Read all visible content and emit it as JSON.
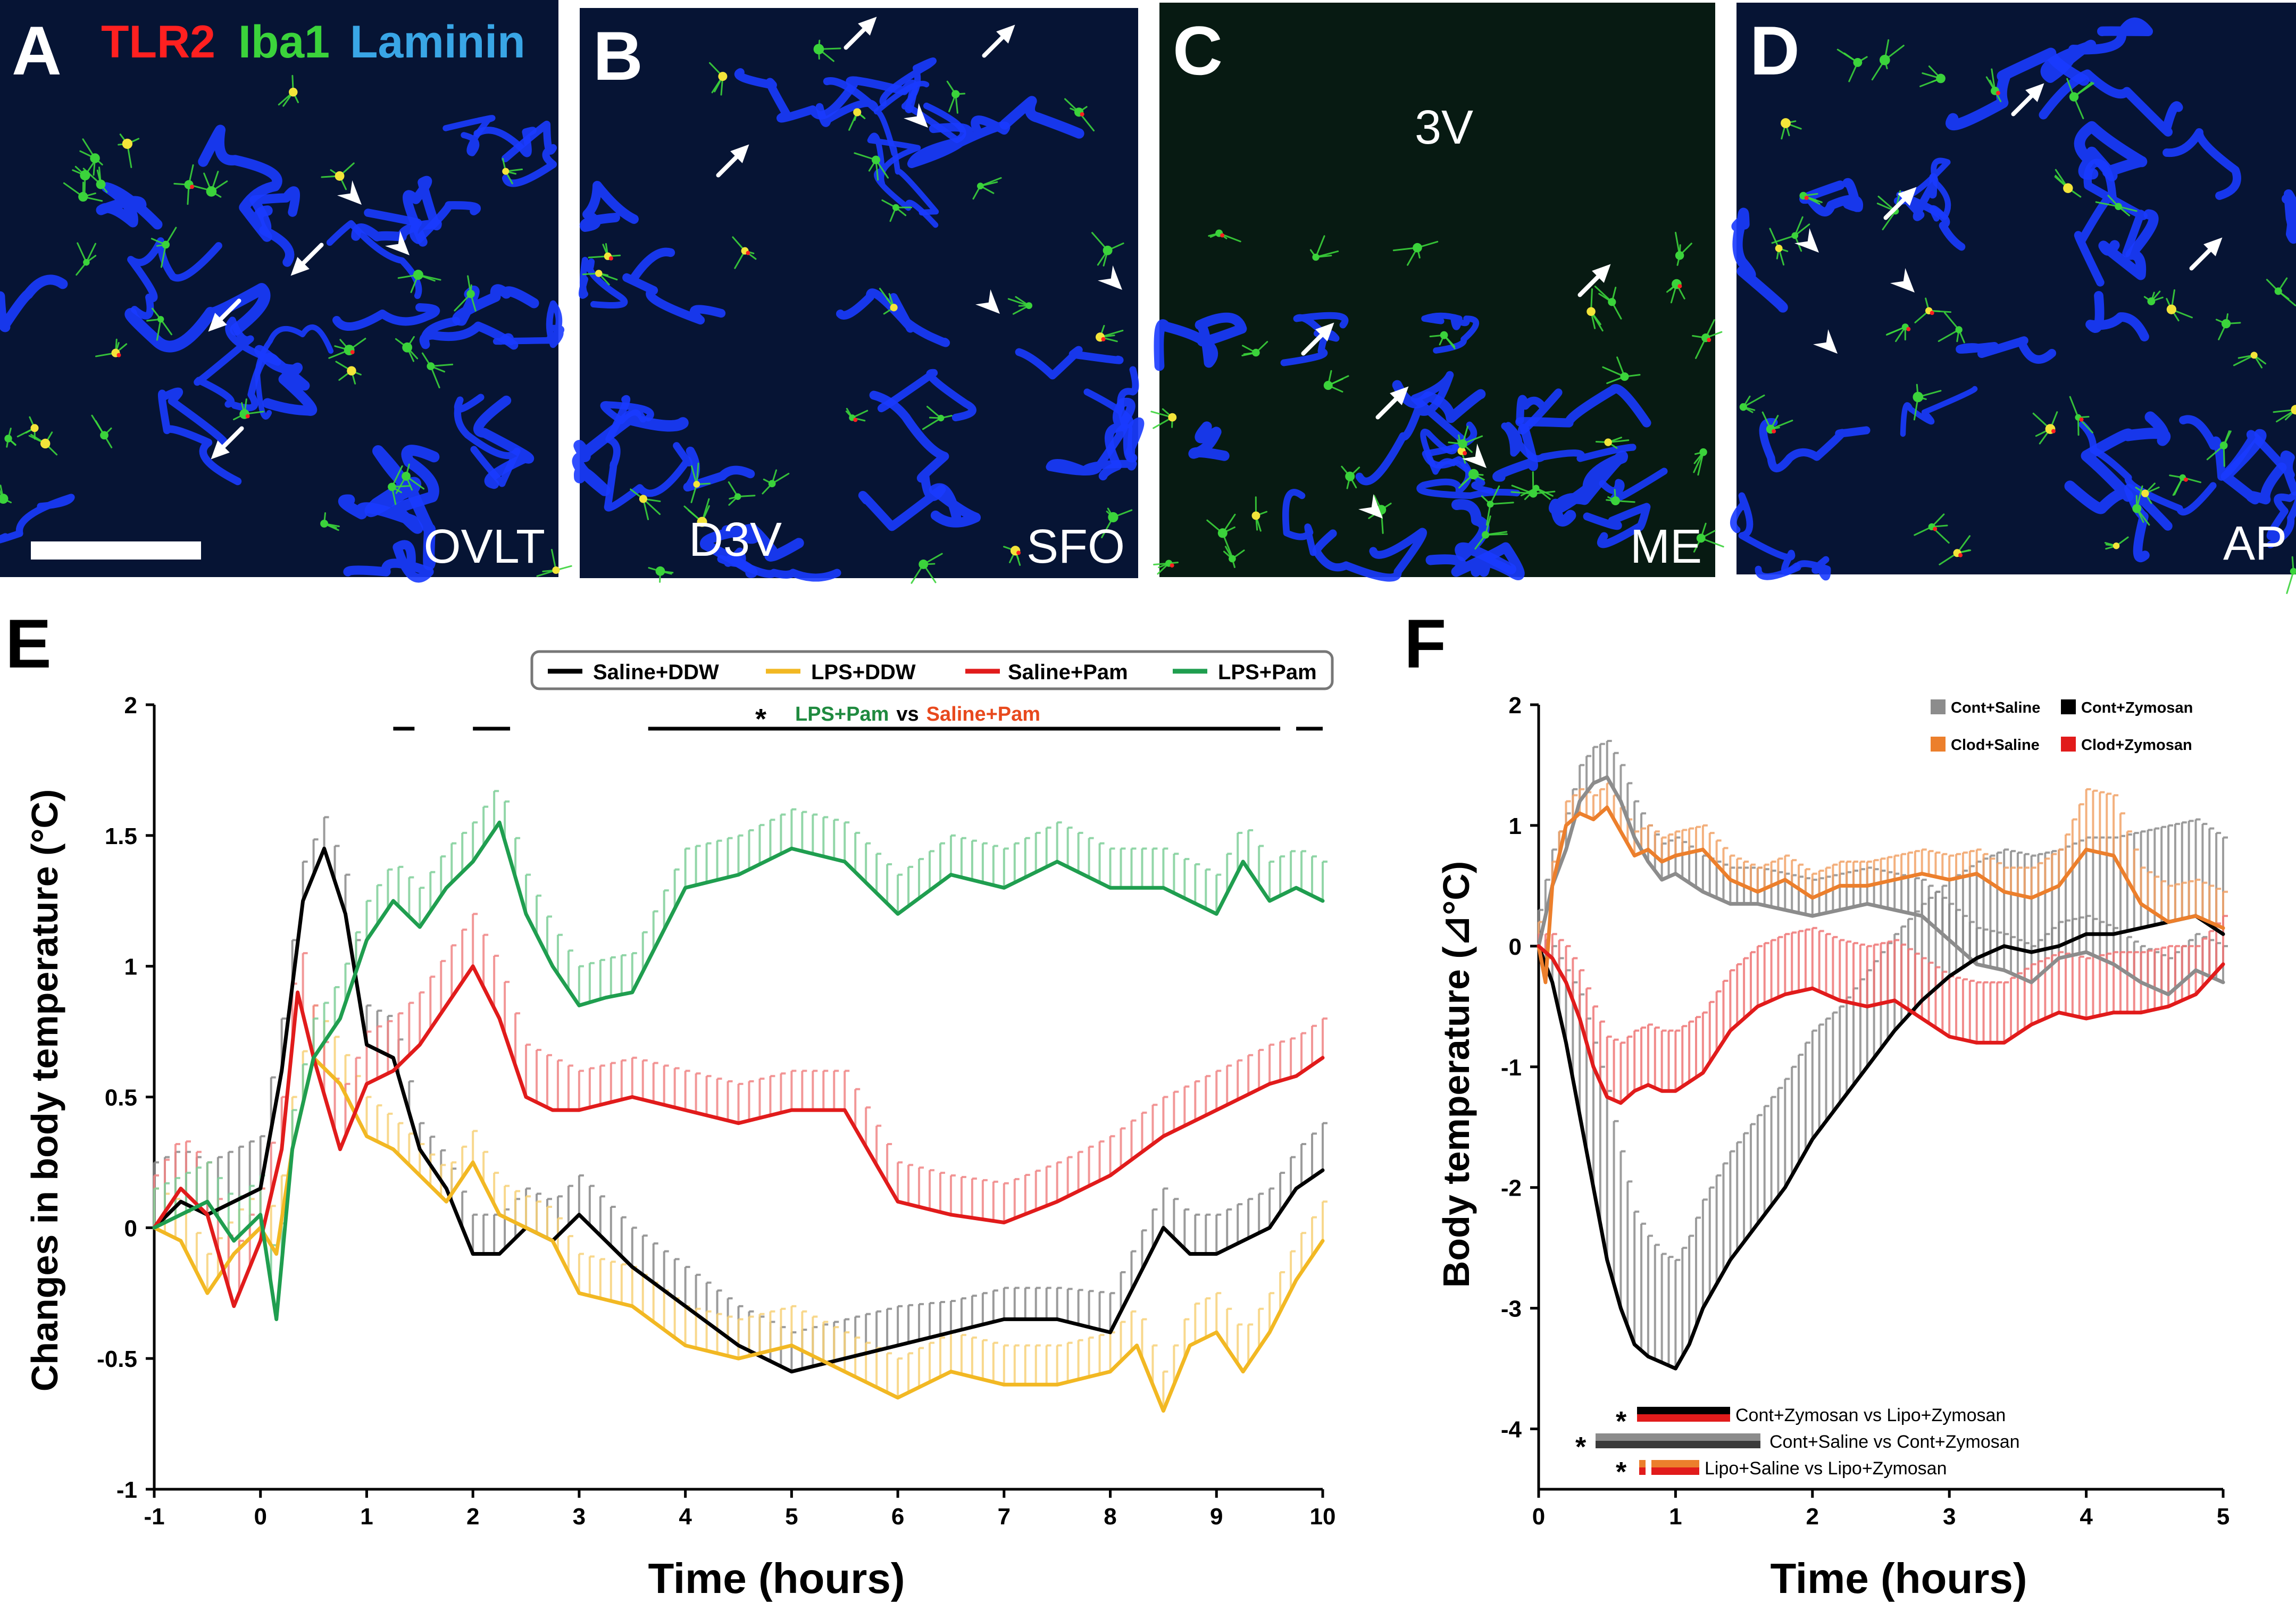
{
  "colors": {
    "saline_ddw": "#000000",
    "lps_ddw": "#f2b823",
    "saline_pam": "#e11b1b",
    "lps_pam": "#1f9e4f",
    "cont_saline": "#8c8c8c",
    "cont_zymosan": "#000000",
    "clod_saline": "#ec7f2c",
    "clod_zymosan": "#e11b1b",
    "laminin": "#1a3bff",
    "iba1": "#3bd33b",
    "tlr2": "#ff2020",
    "stain_title_laminin": "#39a6e6"
  },
  "micrographs": {
    "stain_title": {
      "tlr2": "TLR2",
      "iba1": "Iba1",
      "laminin": "Laminin"
    },
    "panels": [
      {
        "letter": "A",
        "region": "OVLT",
        "extra_label": ""
      },
      {
        "letter": "B",
        "region": "SFO",
        "extra_label": "D3V"
      },
      {
        "letter": "C",
        "region": "ME",
        "extra_label": "3V"
      },
      {
        "letter": "D",
        "region": "AP",
        "extra_label": ""
      }
    ]
  },
  "panel_e": {
    "letter": "E",
    "sig_star": "*",
    "sig_label_a": "LPS+Pam",
    "sig_vs": "vs",
    "sig_label_b": "Saline+Pam"
  },
  "panel_f": {
    "letter": "F",
    "comparisons": [
      {
        "star": "*",
        "label": "Cont+Zymosan vs Lipo+Zymosan"
      },
      {
        "star": "*",
        "label": "Cont+Saline vs Cont+Zymosan"
      },
      {
        "star": "*",
        "label": "Lipo+Saline vs Lipo+Zymosan"
      }
    ]
  },
  "chart_data": [
    {
      "id": "E",
      "type": "line",
      "title": "",
      "xlabel": "Time (hours)",
      "ylabel": "Changes in body temperature (°C)",
      "xlim": [
        -1,
        10
      ],
      "ylim": [
        -1,
        2
      ],
      "xticks": [
        -1,
        0,
        1,
        2,
        3,
        4,
        5,
        6,
        7,
        8,
        9,
        10
      ],
      "yticks": [
        -1,
        -0.5,
        0,
        0.5,
        1,
        1.5,
        2
      ],
      "ytick_labels": [
        "-1",
        "-0.5",
        "0",
        "0.5",
        "1",
        "1.5",
        "2"
      ],
      "legend_position": "top",
      "error_bars": "upper SEM",
      "significance_ranges": [
        [
          1.25,
          1.45
        ],
        [
          2.0,
          2.35
        ],
        [
          3.65,
          9.6
        ],
        [
          9.75,
          10.0
        ]
      ],
      "series": [
        {
          "name": "Saline+DDW",
          "color_key": "saline_ddw",
          "x": [
            -1.0,
            -0.75,
            -0.5,
            -0.25,
            0.0,
            0.2,
            0.4,
            0.6,
            0.8,
            1.0,
            1.25,
            1.5,
            1.75,
            2.0,
            2.25,
            2.5,
            2.75,
            3.0,
            3.5,
            4.0,
            4.5,
            5.0,
            5.5,
            6.0,
            6.5,
            7.0,
            7.5,
            8.0,
            8.25,
            8.5,
            8.75,
            9.0,
            9.5,
            9.75,
            10.0
          ],
          "y": [
            0.0,
            0.1,
            0.05,
            0.1,
            0.15,
            0.6,
            1.25,
            1.45,
            1.2,
            0.7,
            0.65,
            0.3,
            0.15,
            -0.1,
            -0.1,
            0.0,
            -0.05,
            0.05,
            -0.15,
            -0.3,
            -0.45,
            -0.55,
            -0.5,
            -0.45,
            -0.4,
            -0.35,
            -0.35,
            -0.4,
            -0.2,
            0.0,
            -0.1,
            -0.1,
            0.0,
            0.15,
            0.22
          ],
          "err": [
            0.25,
            0.2,
            0.2,
            0.2,
            0.2,
            0.2,
            0.15,
            0.12,
            0.15,
            0.15,
            0.15,
            0.1,
            0.12,
            0.15,
            0.15,
            0.15,
            0.15,
            0.15,
            0.15,
            0.15,
            0.15,
            0.15,
            0.15,
            0.15,
            0.12,
            0.12,
            0.12,
            0.15,
            0.15,
            0.15,
            0.15,
            0.15,
            0.15,
            0.15,
            0.18
          ]
        },
        {
          "name": "LPS+DDW",
          "color_key": "lps_ddw",
          "x": [
            -1.0,
            -0.75,
            -0.5,
            -0.25,
            0.0,
            0.15,
            0.3,
            0.5,
            0.75,
            1.0,
            1.25,
            1.5,
            1.75,
            2.0,
            2.25,
            2.5,
            2.75,
            3.0,
            3.5,
            4.0,
            4.5,
            5.0,
            5.5,
            6.0,
            6.5,
            7.0,
            7.5,
            8.0,
            8.25,
            8.5,
            8.75,
            9.0,
            9.25,
            9.5,
            9.75,
            10.0
          ],
          "y": [
            0.0,
            -0.05,
            -0.25,
            -0.1,
            0.0,
            -0.1,
            0.3,
            0.65,
            0.55,
            0.35,
            0.3,
            0.2,
            0.1,
            0.25,
            0.05,
            0.0,
            -0.05,
            -0.25,
            -0.3,
            -0.45,
            -0.5,
            -0.45,
            -0.55,
            -0.65,
            -0.55,
            -0.6,
            -0.6,
            -0.55,
            -0.45,
            -0.7,
            -0.45,
            -0.4,
            -0.55,
            -0.4,
            -0.2,
            -0.05
          ],
          "err": [
            0.15,
            0.15,
            0.15,
            0.15,
            0.15,
            0.15,
            0.2,
            0.2,
            0.15,
            0.15,
            0.12,
            0.12,
            0.12,
            0.12,
            0.12,
            0.12,
            0.12,
            0.15,
            0.15,
            0.15,
            0.15,
            0.15,
            0.15,
            0.15,
            0.15,
            0.15,
            0.15,
            0.15,
            0.15,
            0.15,
            0.15,
            0.15,
            0.15,
            0.15,
            0.15,
            0.15
          ]
        },
        {
          "name": "Saline+Pam",
          "color_key": "saline_pam",
          "x": [
            -1.0,
            -0.75,
            -0.5,
            -0.25,
            0.0,
            0.2,
            0.35,
            0.5,
            0.75,
            1.0,
            1.25,
            1.5,
            1.75,
            2.0,
            2.25,
            2.5,
            2.75,
            3.0,
            3.5,
            4.0,
            4.5,
            5.0,
            5.5,
            6.0,
            6.5,
            7.0,
            7.5,
            8.0,
            8.5,
            9.0,
            9.5,
            9.75,
            10.0
          ],
          "y": [
            0.0,
            0.15,
            0.05,
            -0.3,
            -0.05,
            0.3,
            0.9,
            0.65,
            0.3,
            0.55,
            0.6,
            0.7,
            0.85,
            1.0,
            0.8,
            0.5,
            0.45,
            0.45,
            0.5,
            0.45,
            0.4,
            0.45,
            0.45,
            0.1,
            0.05,
            0.02,
            0.1,
            0.2,
            0.35,
            0.45,
            0.55,
            0.58,
            0.65
          ],
          "err": [
            0.2,
            0.2,
            0.2,
            0.2,
            0.2,
            0.2,
            0.25,
            0.2,
            0.2,
            0.2,
            0.2,
            0.2,
            0.2,
            0.2,
            0.2,
            0.2,
            0.2,
            0.15,
            0.15,
            0.15,
            0.15,
            0.15,
            0.15,
            0.15,
            0.15,
            0.15,
            0.15,
            0.15,
            0.15,
            0.15,
            0.15,
            0.15,
            0.15
          ]
        },
        {
          "name": "LPS+Pam",
          "color_key": "lps_pam",
          "x": [
            -1.0,
            -0.75,
            -0.5,
            -0.25,
            0.0,
            0.15,
            0.3,
            0.5,
            0.75,
            1.0,
            1.25,
            1.5,
            1.75,
            2.0,
            2.25,
            2.5,
            2.75,
            3.0,
            3.25,
            3.5,
            3.75,
            4.0,
            4.5,
            5.0,
            5.5,
            6.0,
            6.5,
            7.0,
            7.5,
            8.0,
            8.5,
            9.0,
            9.25,
            9.5,
            9.75,
            10.0
          ],
          "y": [
            0.0,
            0.05,
            0.1,
            -0.05,
            0.05,
            -0.35,
            0.3,
            0.65,
            0.8,
            1.1,
            1.25,
            1.15,
            1.3,
            1.4,
            1.55,
            1.2,
            1.0,
            0.85,
            0.88,
            0.9,
            1.1,
            1.3,
            1.35,
            1.45,
            1.4,
            1.2,
            1.35,
            1.3,
            1.4,
            1.3,
            1.3,
            1.2,
            1.4,
            1.25,
            1.3,
            1.25
          ],
          "err": [
            0.15,
            0.15,
            0.15,
            0.15,
            0.15,
            0.15,
            0.15,
            0.15,
            0.15,
            0.15,
            0.15,
            0.15,
            0.15,
            0.15,
            0.15,
            0.15,
            0.15,
            0.15,
            0.15,
            0.15,
            0.15,
            0.15,
            0.15,
            0.15,
            0.15,
            0.15,
            0.15,
            0.15,
            0.15,
            0.15,
            0.15,
            0.15,
            0.15,
            0.15,
            0.15,
            0.15
          ]
        }
      ]
    },
    {
      "id": "F",
      "type": "line",
      "title": "",
      "xlabel": "Time (hours)",
      "ylabel": "Body temperature (⊿°C)",
      "xlim": [
        0,
        5
      ],
      "ylim": [
        -4.5,
        2
      ],
      "xticks": [
        0,
        1,
        2,
        3,
        4,
        5
      ],
      "yticks": [
        -4,
        -3,
        -2,
        -1,
        0,
        1,
        2
      ],
      "legend_position": "top-right",
      "error_bars": "one-sided SEM",
      "series": [
        {
          "name": "Cont+Saline",
          "color_key": "cont_saline",
          "x": [
            0.0,
            0.1,
            0.2,
            0.3,
            0.4,
            0.5,
            0.6,
            0.7,
            0.8,
            0.9,
            1.0,
            1.2,
            1.4,
            1.6,
            1.8,
            2.0,
            2.2,
            2.4,
            2.6,
            2.8,
            3.0,
            3.2,
            3.4,
            3.6,
            3.8,
            4.0,
            4.2,
            4.4,
            4.6,
            4.8,
            5.0
          ],
          "y": [
            0.0,
            0.5,
            0.8,
            1.2,
            1.35,
            1.4,
            1.2,
            0.9,
            0.7,
            0.55,
            0.6,
            0.45,
            0.35,
            0.35,
            0.3,
            0.25,
            0.3,
            0.35,
            0.3,
            0.25,
            0.05,
            -0.15,
            -0.2,
            -0.3,
            -0.1,
            -0.05,
            -0.15,
            -0.3,
            -0.4,
            -0.2,
            -0.3
          ],
          "err": [
            0.3,
            0.3,
            0.3,
            0.3,
            0.3,
            0.3,
            0.3,
            0.3,
            0.3,
            0.3,
            0.3,
            0.3,
            0.3,
            0.3,
            0.3,
            0.3,
            0.3,
            0.3,
            0.3,
            0.3,
            0.3,
            0.3,
            0.3,
            0.3,
            0.3,
            0.3,
            0.3,
            0.3,
            0.3,
            0.3,
            0.3
          ]
        },
        {
          "name": "Cont+Zymosan",
          "color_key": "cont_zymosan",
          "x": [
            0.0,
            0.1,
            0.2,
            0.3,
            0.4,
            0.5,
            0.6,
            0.7,
            0.8,
            0.9,
            1.0,
            1.1,
            1.2,
            1.4,
            1.6,
            1.8,
            2.0,
            2.2,
            2.4,
            2.6,
            2.8,
            3.0,
            3.2,
            3.4,
            3.6,
            3.8,
            4.0,
            4.2,
            4.4,
            4.6,
            4.8,
            5.0
          ],
          "y": [
            0.0,
            -0.3,
            -0.8,
            -1.4,
            -2.0,
            -2.6,
            -3.0,
            -3.3,
            -3.4,
            -3.45,
            -3.5,
            -3.3,
            -3.0,
            -2.6,
            -2.3,
            -2.0,
            -1.6,
            -1.3,
            -1.0,
            -0.7,
            -0.45,
            -0.25,
            -0.1,
            0.0,
            -0.05,
            0.0,
            0.1,
            0.1,
            0.15,
            0.2,
            0.25,
            0.1
          ],
          "err": [
            0.1,
            0.3,
            0.6,
            1.0,
            1.2,
            1.4,
            1.3,
            1.1,
            1.0,
            0.9,
            0.9,
            0.9,
            0.9,
            0.9,
            0.9,
            0.9,
            0.9,
            0.8,
            0.8,
            0.8,
            0.8,
            0.8,
            0.8,
            0.8,
            0.8,
            0.8,
            0.8,
            0.8,
            0.8,
            0.8,
            0.8,
            0.8
          ]
        },
        {
          "name": "Clod+Saline",
          "color_key": "clod_saline",
          "x": [
            0.0,
            0.05,
            0.1,
            0.2,
            0.3,
            0.4,
            0.5,
            0.6,
            0.7,
            0.8,
            0.9,
            1.0,
            1.2,
            1.4,
            1.6,
            1.8,
            2.0,
            2.2,
            2.4,
            2.6,
            2.8,
            3.0,
            3.2,
            3.4,
            3.6,
            3.8,
            4.0,
            4.2,
            4.4,
            4.6,
            4.8,
            5.0
          ],
          "y": [
            0.0,
            -0.3,
            0.5,
            1.0,
            1.1,
            1.05,
            1.15,
            0.95,
            0.75,
            0.8,
            0.7,
            0.75,
            0.8,
            0.55,
            0.45,
            0.55,
            0.4,
            0.5,
            0.5,
            0.55,
            0.6,
            0.55,
            0.6,
            0.45,
            0.4,
            0.5,
            0.8,
            0.75,
            0.35,
            0.2,
            0.25,
            0.15
          ],
          "err": [
            0.2,
            0.2,
            0.2,
            0.2,
            0.2,
            0.2,
            0.2,
            0.2,
            0.2,
            0.2,
            0.2,
            0.2,
            0.2,
            0.2,
            0.2,
            0.2,
            0.2,
            0.2,
            0.2,
            0.2,
            0.2,
            0.2,
            0.2,
            0.2,
            0.25,
            0.3,
            0.5,
            0.5,
            0.3,
            0.3,
            0.3,
            0.3
          ]
        },
        {
          "name": "Clod+Zymosan",
          "color_key": "clod_zymosan",
          "x": [
            0.0,
            0.1,
            0.2,
            0.3,
            0.4,
            0.5,
            0.6,
            0.7,
            0.8,
            0.9,
            1.0,
            1.2,
            1.4,
            1.6,
            1.8,
            2.0,
            2.2,
            2.4,
            2.6,
            2.8,
            3.0,
            3.2,
            3.4,
            3.6,
            3.8,
            4.0,
            4.2,
            4.4,
            4.6,
            4.8,
            5.0
          ],
          "y": [
            0.0,
            -0.1,
            -0.3,
            -0.6,
            -1.0,
            -1.25,
            -1.3,
            -1.2,
            -1.15,
            -1.2,
            -1.2,
            -1.05,
            -0.7,
            -0.5,
            -0.4,
            -0.35,
            -0.45,
            -0.5,
            -0.45,
            -0.6,
            -0.75,
            -0.8,
            -0.8,
            -0.65,
            -0.55,
            -0.6,
            -0.55,
            -0.55,
            -0.5,
            -0.4,
            -0.15
          ],
          "err": [
            0.1,
            0.2,
            0.3,
            0.4,
            0.5,
            0.5,
            0.5,
            0.5,
            0.5,
            0.5,
            0.5,
            0.5,
            0.5,
            0.5,
            0.5,
            0.5,
            0.5,
            0.5,
            0.5,
            0.5,
            0.5,
            0.5,
            0.5,
            0.5,
            0.5,
            0.5,
            0.5,
            0.5,
            0.5,
            0.4,
            0.4
          ]
        }
      ]
    }
  ]
}
